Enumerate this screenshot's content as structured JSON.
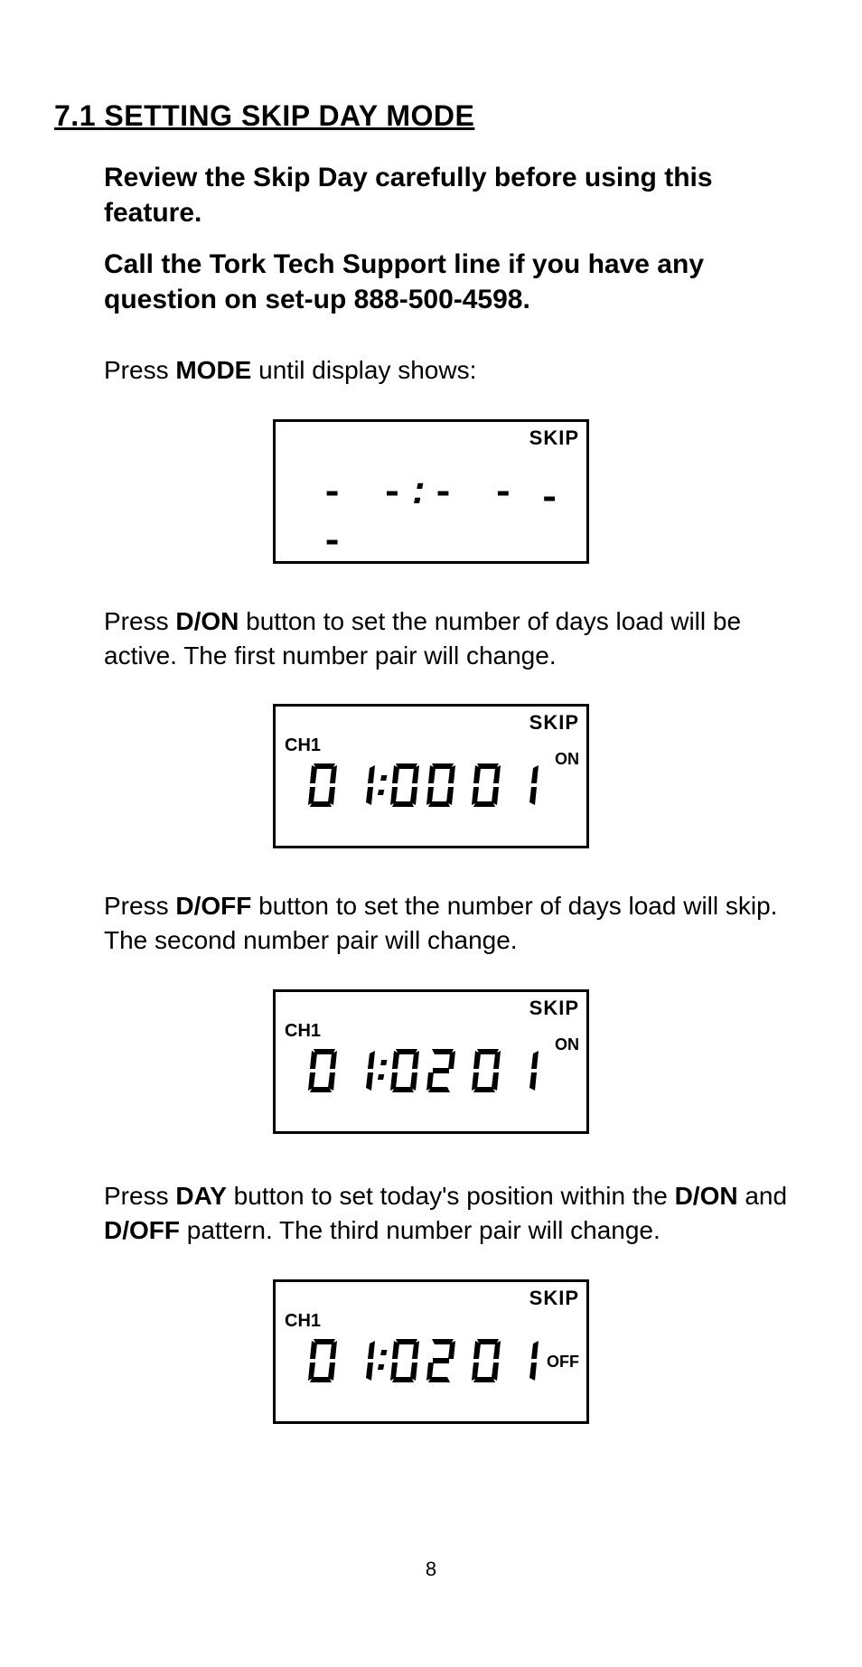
{
  "section": {
    "number": "7.1",
    "title": "SETTING SKIP DAY MODE"
  },
  "intro": {
    "line1": "Review the Skip Day carefully before using this feature.",
    "line2": "Call the Tork Tech Support line if you have any question on set-up 888-500-4598."
  },
  "steps": {
    "step1": {
      "prefix": "Press ",
      "button": "MODE",
      "suffix": " until display shows:"
    },
    "step2": {
      "prefix": "Press ",
      "button": "D/ON",
      "suffix": " button to set the number of days load will be active. The first number pair will change."
    },
    "step3": {
      "prefix": "Press ",
      "button": "D/OFF",
      "suffix": " button to set the number of days load will skip. The second number pair will change."
    },
    "step4": {
      "prefix": "Press ",
      "button1": "DAY",
      "mid1": " button to set today's position within the ",
      "button2": "D/ON",
      "mid2": " and ",
      "button3": "D/OFF",
      "suffix": " pattern. The third number pair will change."
    }
  },
  "displays": {
    "d1": {
      "skip": "SKIP",
      "dashes": "- -:- -  - -"
    },
    "d2": {
      "skip": "SKIP",
      "ch": "CH1",
      "status": "ON",
      "digits": [
        "0",
        "1",
        "0",
        "0",
        "0",
        "1"
      ]
    },
    "d3": {
      "skip": "SKIP",
      "ch": "CH1",
      "status": "ON",
      "digits": [
        "0",
        "1",
        "0",
        "2",
        "0",
        "1"
      ]
    },
    "d4": {
      "skip": "SKIP",
      "ch": "CH1",
      "status": "OFF",
      "digits": [
        "0",
        "1",
        "0",
        "2",
        "0",
        "1"
      ]
    }
  },
  "page_number": "8",
  "colors": {
    "text": "#000000",
    "background": "#ffffff",
    "border": "#000000"
  }
}
